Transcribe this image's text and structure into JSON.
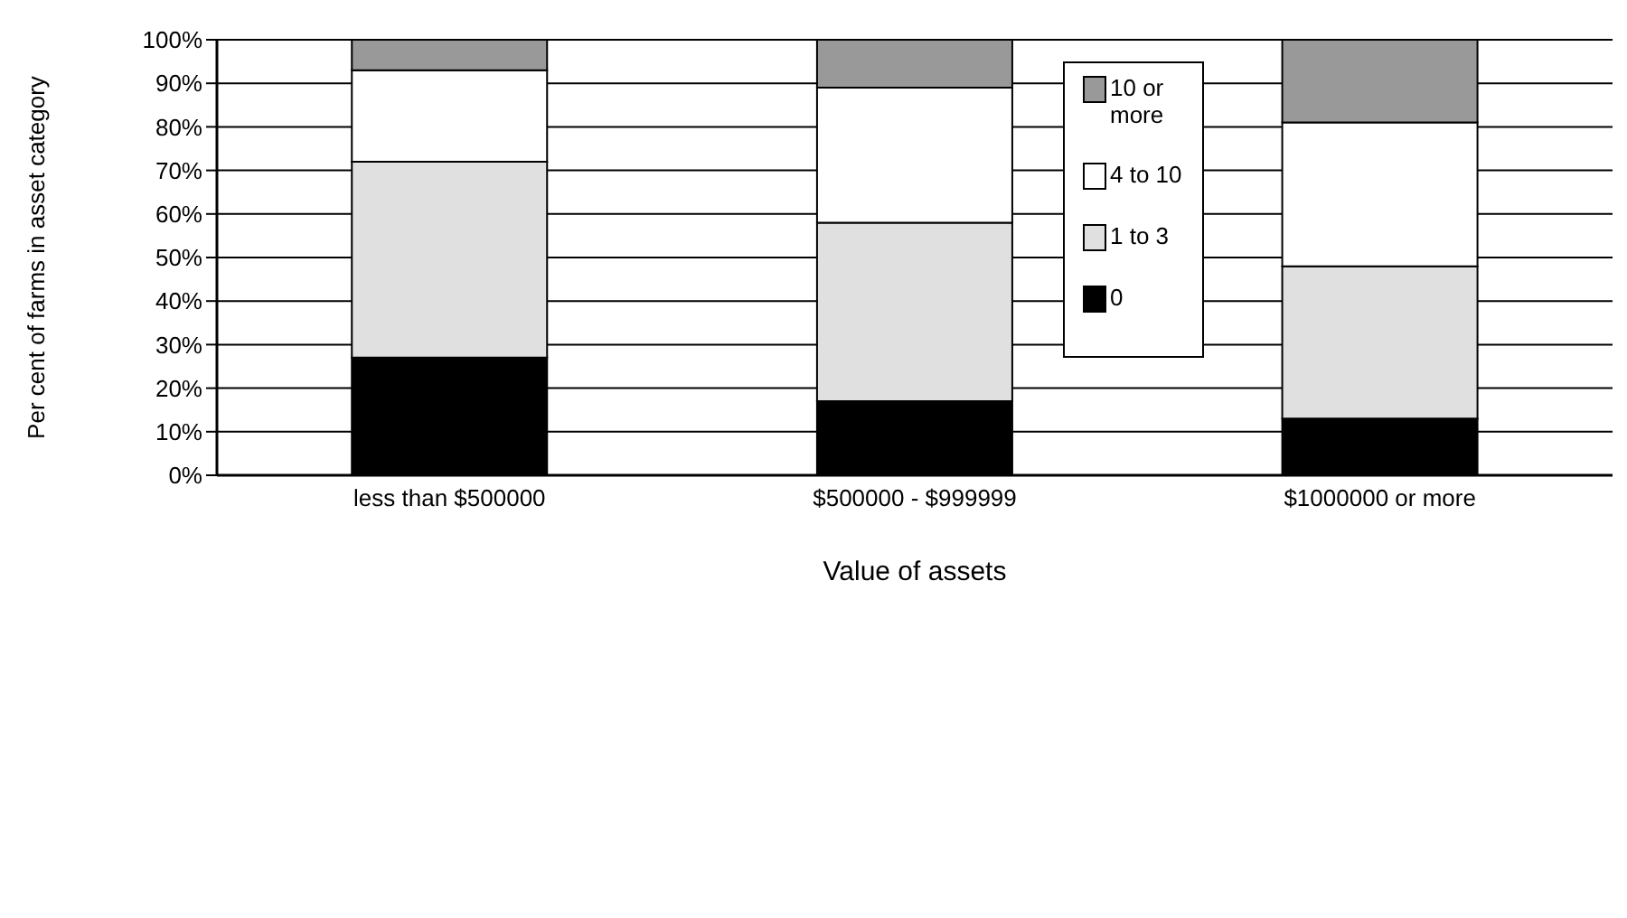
{
  "chart_data": {
    "type": "bar",
    "stacked": true,
    "xlabel": "Value of assets",
    "ylabel": "Per cent of farms in asset category",
    "categories": [
      "less than $500000",
      "$500000 - $999999",
      "$1000000 or more"
    ],
    "series": [
      {
        "name": "0",
        "color": "#000000",
        "values": [
          27,
          17,
          13
        ]
      },
      {
        "name": "1 to 3",
        "color": "#e0e0e0",
        "values": [
          45,
          41,
          35
        ]
      },
      {
        "name": "4 to 10",
        "color": "#ffffff",
        "values": [
          21,
          31,
          33
        ]
      },
      {
        "name": "10 or more",
        "color": "#999999",
        "values": [
          7,
          11,
          19
        ]
      }
    ],
    "ylim": [
      0,
      100
    ],
    "yticks": [
      {
        "value": 0,
        "label": "0%"
      },
      {
        "value": 10,
        "label": "10%"
      },
      {
        "value": 20,
        "label": "20%"
      },
      {
        "value": 30,
        "label": "30%"
      },
      {
        "value": 40,
        "label": "40%"
      },
      {
        "value": 50,
        "label": "50%"
      },
      {
        "value": 60,
        "label": "60%"
      },
      {
        "value": 70,
        "label": "70%"
      },
      {
        "value": 80,
        "label": "80%"
      },
      {
        "value": 90,
        "label": "90%"
      },
      {
        "value": 100,
        "label": "100%"
      }
    ],
    "grid": "y",
    "legend": "top right"
  }
}
